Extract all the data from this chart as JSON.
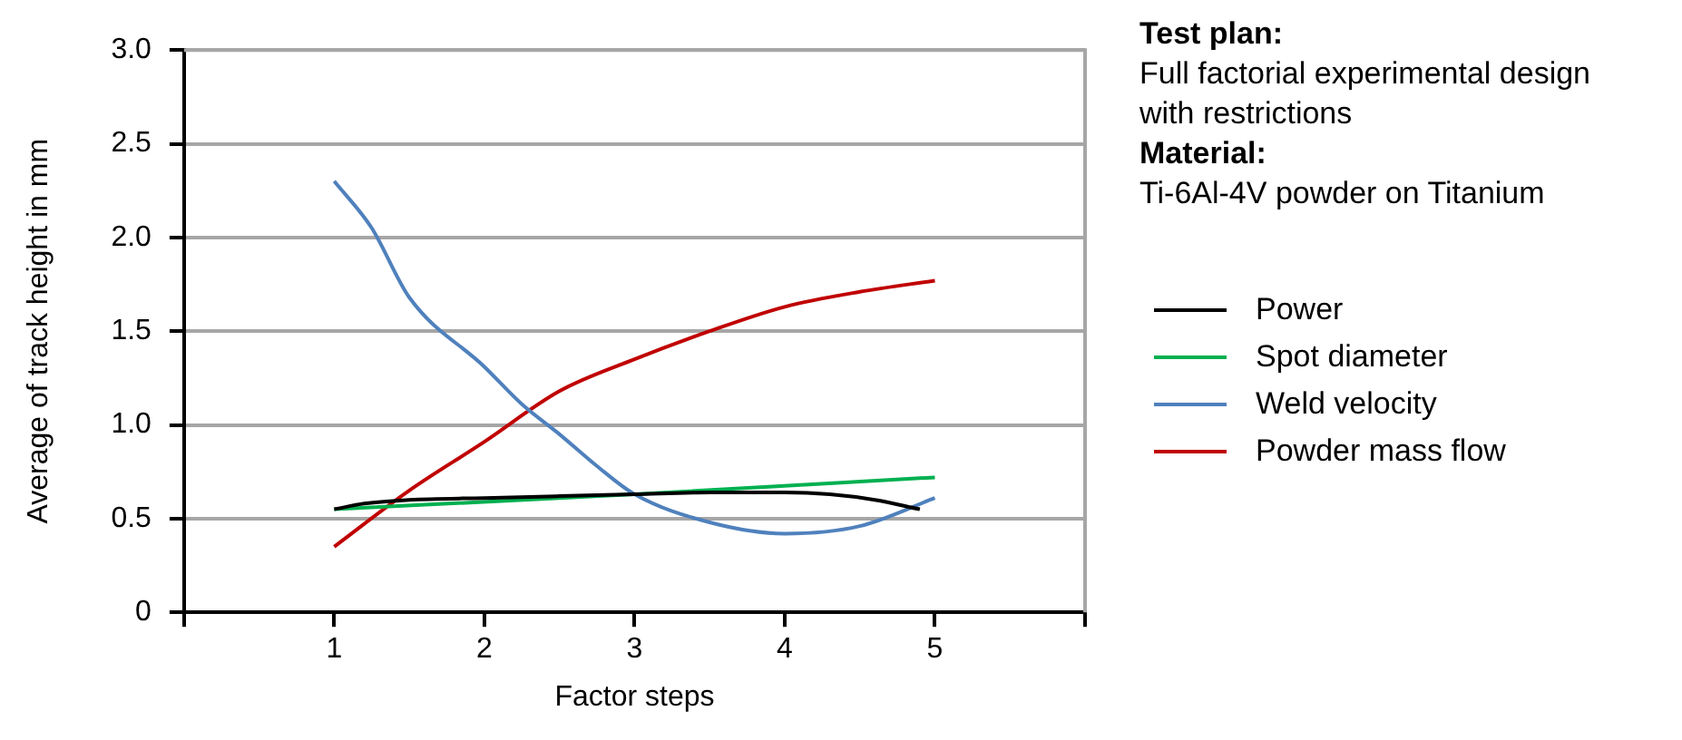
{
  "chart_data": {
    "type": "line",
    "xlabel": "Factor steps",
    "ylabel": "Average of track height in mm",
    "xlim": [
      0,
      6
    ],
    "xticks": [
      {
        "value": 0,
        "label": null
      },
      1,
      2,
      3,
      4,
      5,
      {
        "value": 6,
        "label": null
      }
    ],
    "ylim": [
      0,
      3
    ],
    "yticks": [
      0,
      0.5,
      {
        "value": 1,
        "label": "1.0"
      },
      1.5,
      {
        "value": 2,
        "label": "2.0"
      },
      2.5,
      {
        "value": 3,
        "label": "3.0"
      }
    ],
    "grid": "y",
    "legend": "right",
    "marker": "none",
    "line_style": "solid",
    "annotations": [
      "Test plan:",
      "Full factorial experimental design with restrictions",
      "Material:",
      "Ti-6Al-4V powder on Titanium"
    ],
    "series": [
      {
        "name": "Power",
        "color": "#000000",
        "x": [
          1,
          1.2,
          1.5,
          2,
          2.5,
          3,
          3.5,
          4,
          4.3,
          4.6,
          4.9
        ],
        "values": [
          0.55,
          0.58,
          0.6,
          0.61,
          0.62,
          0.63,
          0.64,
          0.64,
          0.63,
          0.6,
          0.55
        ]
      },
      {
        "name": "Spot diameter",
        "color": "#00b050",
        "x": [
          1,
          3,
          5
        ],
        "values": [
          0.55,
          0.63,
          0.72
        ]
      },
      {
        "name": "Weld velocity",
        "color": "#4f81bd",
        "x": [
          1,
          1.25,
          1.5,
          2,
          2.25,
          2.5,
          2.75,
          3,
          3.5,
          4,
          4.5,
          5
        ],
        "values": [
          2.3,
          2.05,
          1.68,
          1.31,
          1.11,
          0.95,
          0.78,
          0.63,
          0.48,
          0.42,
          0.46,
          0.61
        ]
      },
      {
        "name": "Powder mass flow",
        "color": "#c00000",
        "x": [
          1,
          1.5,
          2,
          2.5,
          3,
          3.5,
          4,
          4.5,
          5
        ],
        "values": [
          0.35,
          0.65,
          0.91,
          1.18,
          1.35,
          1.5,
          1.63,
          1.71,
          1.77
        ]
      }
    ]
  }
}
